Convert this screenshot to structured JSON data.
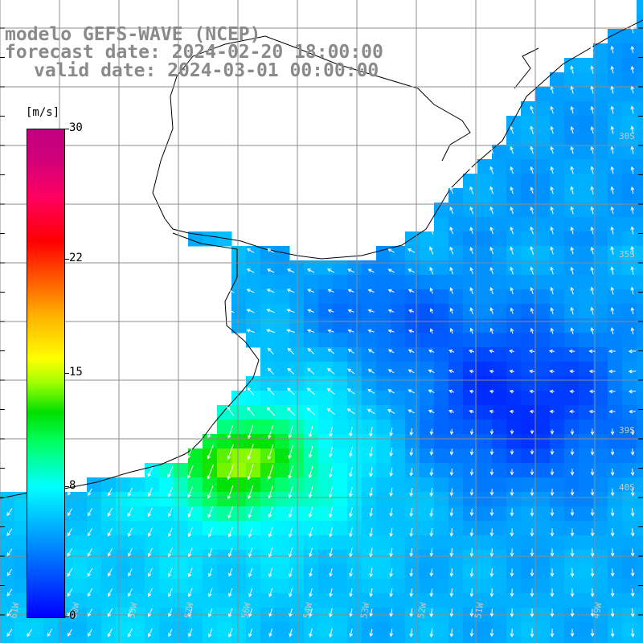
{
  "title": {
    "line1": "modelo GEFS-WAVE (NCEP)",
    "line2": "forecast date: 2024-02-20 18:00:00",
    "line3": "valid date: 2024-03-01 00:00:00"
  },
  "colorbar": {
    "unit": "[m/s]",
    "ticks": [
      "30",
      "22",
      "15",
      "8",
      "0"
    ],
    "tick_values": [
      30,
      22,
      15,
      8,
      0
    ],
    "range": [
      0,
      30
    ]
  },
  "map": {
    "type": "wind-speed-field",
    "variable_unit": "m/s",
    "land_color": "#ffffff",
    "coast_color": "#000000",
    "grid_color": "#8c8c8c",
    "vector_color": "#ffffff",
    "lat_labels": [
      "30S",
      "35S",
      "39S",
      "40S"
    ],
    "lon_labels": [
      "61W",
      "60W",
      "59W",
      "57W",
      "56W",
      "54W",
      "53W",
      "52W",
      "51W",
      "49W"
    ]
  }
}
